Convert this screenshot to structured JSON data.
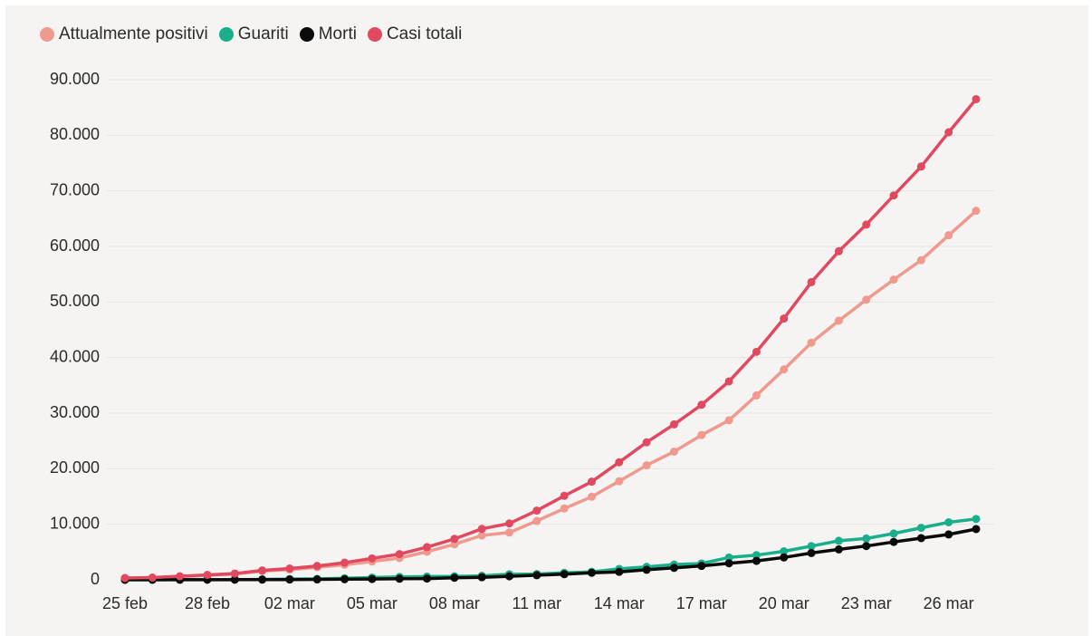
{
  "chart_data": {
    "type": "line",
    "ylim": [
      0,
      90000
    ],
    "y_ticks": [
      "0",
      "10.000",
      "20.000",
      "30.000",
      "40.000",
      "50.000",
      "60.000",
      "70.000",
      "80.000",
      "90.000"
    ],
    "x_ticks": [
      {
        "index": 0,
        "label": "25 feb"
      },
      {
        "index": 3,
        "label": "28 feb"
      },
      {
        "index": 6,
        "label": "02 mar"
      },
      {
        "index": 9,
        "label": "05 mar"
      },
      {
        "index": 12,
        "label": "08 mar"
      },
      {
        "index": 15,
        "label": "11 mar"
      },
      {
        "index": 18,
        "label": "14 mar"
      },
      {
        "index": 21,
        "label": "17 mar"
      },
      {
        "index": 24,
        "label": "20 mar"
      },
      {
        "index": 27,
        "label": "23 mar"
      },
      {
        "index": 30,
        "label": "26 mar"
      }
    ],
    "x": [
      "25 feb",
      "26 feb",
      "27 feb",
      "28 feb",
      "29 feb",
      "01 mar",
      "02 mar",
      "03 mar",
      "04 mar",
      "05 mar",
      "06 mar",
      "07 mar",
      "08 mar",
      "09 mar",
      "10 mar",
      "11 mar",
      "12 mar",
      "13 mar",
      "14 mar",
      "15 mar",
      "16 mar",
      "17 mar",
      "18 mar",
      "19 mar",
      "20 mar",
      "21 mar",
      "22 mar",
      "23 mar",
      "24 mar",
      "25 mar",
      "26 mar",
      "27 mar"
    ],
    "grid": true,
    "legend_position": "top-left",
    "series": [
      {
        "name": "Attualmente positivi",
        "color": "#f0998f",
        "values": [
          311,
          385,
          588,
          821,
          1049,
          1577,
          1835,
          2263,
          2706,
          3296,
          3916,
          5061,
          6387,
          7985,
          8514,
          10590,
          12839,
          14955,
          17750,
          20603,
          23073,
          26062,
          28710,
          33190,
          37860,
          42681,
          46638,
          50418,
          54030,
          57521,
          62013,
          66414
        ]
      },
      {
        "name": "Guariti",
        "color": "#1aaf8b",
        "values": [
          1,
          3,
          45,
          46,
          50,
          83,
          149,
          160,
          276,
          414,
          523,
          589,
          622,
          724,
          1004,
          1045,
          1258,
          1439,
          1966,
          2335,
          2749,
          2941,
          4025,
          4440,
          5129,
          6072,
          7024,
          7432,
          8326,
          9362,
          10361,
          10950
        ]
      },
      {
        "name": "Morti",
        "color": "#0a0a0a",
        "values": [
          10,
          12,
          17,
          21,
          29,
          34,
          52,
          79,
          107,
          148,
          197,
          233,
          366,
          463,
          631,
          827,
          1016,
          1266,
          1441,
          1809,
          2158,
          2503,
          2978,
          3405,
          4032,
          4825,
          5476,
          6077,
          6820,
          7503,
          8165,
          9134
        ]
      },
      {
        "name": "Casi totali",
        "color": "#e0495f",
        "values": [
          322,
          400,
          650,
          888,
          1128,
          1694,
          2036,
          2502,
          3089,
          3858,
          4636,
          5883,
          7375,
          9172,
          10149,
          12462,
          15113,
          17660,
          21157,
          24747,
          27980,
          31506,
          35713,
          41035,
          47021,
          53578,
          59138,
          63927,
          69176,
          74386,
          80539,
          86498
        ]
      }
    ]
  }
}
